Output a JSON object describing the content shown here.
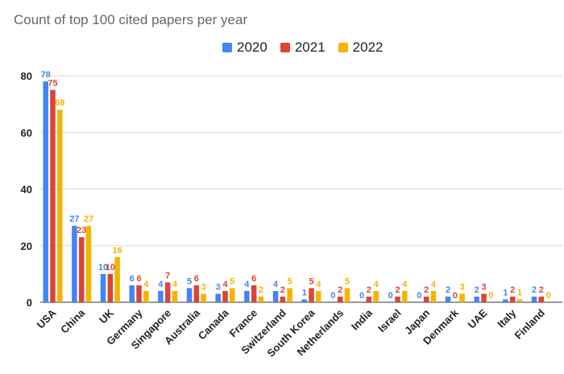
{
  "chart_data": {
    "type": "bar",
    "title": "Count of top 100 cited papers per year",
    "xlabel": "",
    "ylabel": "",
    "ylim": [
      0,
      85
    ],
    "yticks": [
      0,
      20,
      40,
      60,
      80
    ],
    "grid": true,
    "legend_position": "top",
    "categories": [
      "USA",
      "China",
      "UK",
      "Germany",
      "Singapore",
      "Australia",
      "Canada",
      "France",
      "Switzerland",
      "South Korea",
      "Netherlands",
      "India",
      "Israel",
      "Japan",
      "Denmark",
      "UAE",
      "Italy",
      "Finland"
    ],
    "series": [
      {
        "name": "2020",
        "color": "#4285F4",
        "values": [
          78,
          27,
          10,
          6,
          4,
          5,
          3,
          4,
          4,
          1,
          0,
          0,
          0,
          0,
          2,
          2,
          1,
          2
        ]
      },
      {
        "name": "2021",
        "color": "#DB4437",
        "values": [
          75,
          23,
          10,
          6,
          7,
          6,
          4,
          6,
          2,
          5,
          2,
          2,
          2,
          2,
          0,
          3,
          2,
          2
        ]
      },
      {
        "name": "2022",
        "color": "#F4B400",
        "values": [
          68,
          27,
          16,
          4,
          4,
          3,
          5,
          2,
          5,
          4,
          5,
          4,
          4,
          4,
          3,
          0,
          1,
          0
        ]
      }
    ]
  }
}
